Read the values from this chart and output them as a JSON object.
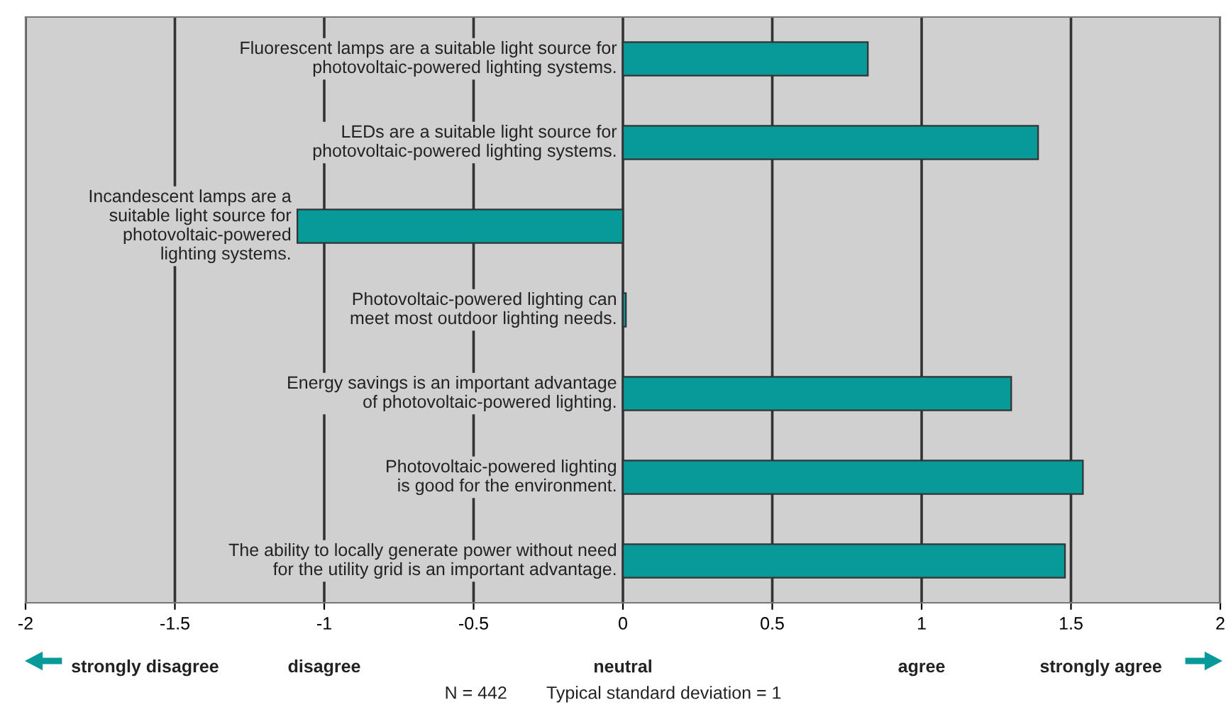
{
  "chart_data": {
    "type": "bar",
    "orientation": "horizontal",
    "categories": [
      "Fluorescent lamps are a suitable light source for\nphotovoltaic-powered lighting systems.",
      "LEDs are a suitable light source for\nphotovoltaic-powered lighting systems.",
      "Incandescent lamps are a\nsuitable light source for\nphotovoltaic-powered\nlighting systems.",
      "Photovoltaic-powered lighting can\nmeet most outdoor lighting needs.",
      "Energy savings is an important advantage\nof photovoltaic-powered lighting.",
      "Photovoltaic-powered lighting\nis good for the environment.",
      "The ability to locally generate power without need\nfor the utility grid is an important advantage."
    ],
    "values": [
      0.82,
      1.39,
      -1.09,
      0.01,
      1.3,
      1.54,
      1.48
    ],
    "color": "#089a98",
    "xlim": [
      -2,
      2
    ],
    "xticks": [
      -2,
      -1.5,
      -1,
      -0.5,
      0,
      0.5,
      1,
      1.5,
      2
    ],
    "grid": "x",
    "annotations": [
      "strongly disagree",
      "disagree",
      "neutral",
      "agree",
      "strongly agree",
      "N = 442        Typical standard deviation = 1"
    ]
  }
}
